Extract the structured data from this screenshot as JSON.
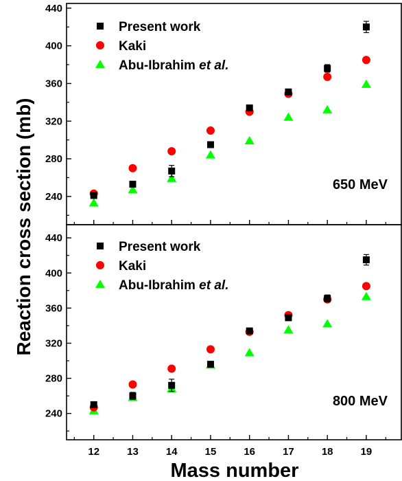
{
  "chart_data": [
    {
      "type": "scatter",
      "panel_label": "650 MeV",
      "xlabel": "Mass number",
      "ylabel": "Reaction cross section (mb)",
      "x": [
        12,
        13,
        14,
        15,
        16,
        17,
        18,
        19
      ],
      "xlim": [
        11.3,
        19.9
      ],
      "ylim": [
        210,
        445
      ],
      "yticks": [
        240,
        280,
        320,
        360,
        400,
        440
      ],
      "legend_position": "top-left",
      "series": [
        {
          "name": "Present work",
          "marker": "square",
          "color": "#000000",
          "values": [
            241,
            253,
            267,
            295,
            334,
            351,
            376,
            420
          ],
          "errors": [
            3,
            3,
            6,
            2,
            3,
            3,
            4,
            6
          ]
        },
        {
          "name": "Kaki",
          "marker": "circle",
          "color": "#ff0000",
          "values": [
            243,
            270,
            288,
            310,
            330,
            349,
            367,
            385
          ]
        },
        {
          "name": "Abu-Ibrahim et al.",
          "name_prefix": "Abu-Ibrahim ",
          "name_italic": "et al.",
          "marker": "triangle",
          "color": "#00ff00",
          "values": [
            233,
            247,
            259,
            284,
            299,
            324,
            332,
            359
          ]
        }
      ]
    },
    {
      "type": "scatter",
      "panel_label": "800 MeV",
      "xlabel": "Mass number",
      "ylabel": "Reaction cross section (mb)",
      "x": [
        12,
        13,
        14,
        15,
        16,
        17,
        18,
        19
      ],
      "xlim": [
        11.3,
        19.9
      ],
      "ylim": [
        210,
        455
      ],
      "yticks": [
        240,
        280,
        320,
        360,
        400,
        440
      ],
      "legend_position": "top-left",
      "series": [
        {
          "name": "Present work",
          "marker": "square",
          "color": "#000000",
          "values": [
            250,
            260,
            272,
            296,
            334,
            349,
            371,
            415
          ],
          "errors": [
            3,
            4,
            7,
            3,
            3,
            3,
            4,
            6
          ]
        },
        {
          "name": "Kaki",
          "marker": "circle",
          "color": "#ff0000",
          "values": [
            247,
            273,
            291,
            313,
            333,
            352,
            370,
            385
          ]
        },
        {
          "name": "Abu-Ibrahim et al.",
          "name_prefix": "Abu-Ibrahim ",
          "name_italic": "et al.",
          "marker": "triangle",
          "color": "#00ff00",
          "values": [
            243,
            258,
            268,
            295,
            309,
            335,
            342,
            373
          ]
        }
      ]
    }
  ]
}
